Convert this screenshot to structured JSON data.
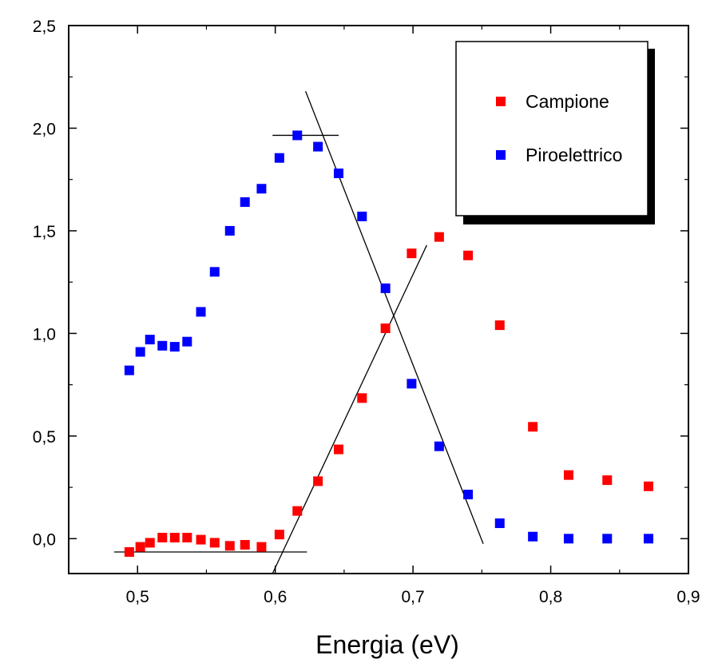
{
  "chart_data": {
    "type": "scatter",
    "title": "",
    "xlabel": "Energia (eV)",
    "ylabel": "",
    "xlim": [
      0.45,
      0.9
    ],
    "ylim": [
      -0.17,
      2.5
    ],
    "x_ticks": [
      {
        "value": 0.5,
        "label": "0,5"
      },
      {
        "value": 0.6,
        "label": "0,6"
      },
      {
        "value": 0.7,
        "label": "0,7"
      },
      {
        "value": 0.8,
        "label": "0,8"
      },
      {
        "value": 0.9,
        "label": "0,9"
      }
    ],
    "y_ticks": [
      {
        "value": 0.0,
        "label": "0,0"
      },
      {
        "value": 0.5,
        "label": "0,5"
      },
      {
        "value": 1.0,
        "label": "1,0"
      },
      {
        "value": 1.5,
        "label": "1,5"
      },
      {
        "value": 2.0,
        "label": "2,0"
      },
      {
        "value": 2.5,
        "label": "2,5"
      }
    ],
    "grid": false,
    "legend_position": "top-right",
    "series": [
      {
        "name": "Campione",
        "color": "#ff0000",
        "x": [
          0.494,
          0.502,
          0.509,
          0.518,
          0.527,
          0.536,
          0.546,
          0.556,
          0.567,
          0.578,
          0.59,
          0.603,
          0.616,
          0.631,
          0.646,
          0.663,
          0.68,
          0.699,
          0.719,
          0.74,
          0.763,
          0.787,
          0.813,
          0.841,
          0.871
        ],
        "y": [
          -0.065,
          -0.04,
          -0.02,
          0.005,
          0.005,
          0.005,
          -0.005,
          -0.02,
          -0.035,
          -0.03,
          -0.04,
          0.02,
          0.135,
          0.28,
          0.435,
          0.685,
          1.025,
          1.39,
          1.47,
          1.38,
          1.04,
          0.545,
          0.31,
          0.285,
          0.255
        ]
      },
      {
        "name": "Piroelettrico",
        "color": "#0000ff",
        "x": [
          0.494,
          0.502,
          0.509,
          0.518,
          0.527,
          0.536,
          0.546,
          0.556,
          0.567,
          0.578,
          0.59,
          0.603,
          0.616,
          0.631,
          0.646,
          0.663,
          0.68,
          0.699,
          0.719,
          0.74,
          0.763,
          0.787,
          0.813,
          0.841,
          0.871
        ],
        "y": [
          0.82,
          0.91,
          0.97,
          0.94,
          0.935,
          0.96,
          1.105,
          1.3,
          1.5,
          1.64,
          1.705,
          1.855,
          1.965,
          1.91,
          1.78,
          1.57,
          1.22,
          0.755,
          0.45,
          0.215,
          0.075,
          0.01,
          0.0,
          0.0,
          0.0
        ]
      }
    ],
    "reference_lines": [
      {
        "color": "#000000",
        "x": [
          0.483,
          0.623
        ],
        "y": [
          -0.065,
          -0.065
        ]
      },
      {
        "color": "#000000",
        "x": [
          0.598,
          0.71
        ],
        "y": [
          -0.17,
          1.43
        ]
      },
      {
        "color": "#000000",
        "x": [
          0.598,
          0.646
        ],
        "y": [
          1.965,
          1.965
        ]
      },
      {
        "color": "#000000",
        "x": [
          0.622,
          0.751
        ],
        "y": [
          2.18,
          -0.025
        ]
      }
    ]
  }
}
